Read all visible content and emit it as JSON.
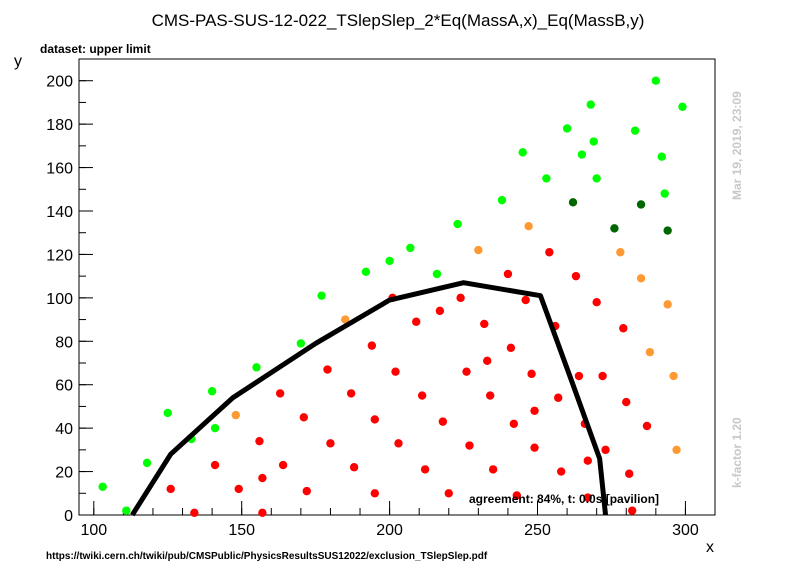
{
  "chart_data": {
    "type": "scatter",
    "title": "CMS-PAS-SUS-12-022_TSlepSlep_2*Eq(MassA,x)_Eq(MassB,y)",
    "subtitle": "dataset: upper limit",
    "xlabel": "x",
    "ylabel": "y",
    "xlim": [
      95,
      310
    ],
    "ylim": [
      0,
      210
    ],
    "x_ticks": [
      100,
      150,
      200,
      250,
      300
    ],
    "y_ticks": [
      0,
      20,
      40,
      60,
      80,
      100,
      120,
      140,
      160,
      180,
      200
    ],
    "annotation": "agreement: 84%, t: 0.0s [pavilion]",
    "side_text_top": "Mar 19, 2019, 23:09",
    "side_text_bottom": "k-factor 1.20",
    "footer": "https://twiki.cern.ch/twiki/pub/CMSPublic/PhysicsResultsSUS12022/exclusion_TSlepSlep.pdf",
    "colors": {
      "red": "#ff0000",
      "green": "#00ff00",
      "orange": "#ff9933",
      "darkgreen": "#006600",
      "line": "#000000"
    },
    "series": [
      {
        "color_key": "red",
        "points": [
          [
            126,
            12
          ],
          [
            134,
            1
          ],
          [
            141,
            23
          ],
          [
            149,
            12
          ],
          [
            156,
            34
          ],
          [
            157,
            17
          ],
          [
            157,
            1
          ],
          [
            163,
            56
          ],
          [
            164,
            23
          ],
          [
            171,
            45
          ],
          [
            172,
            11
          ],
          [
            179,
            67
          ],
          [
            180,
            33
          ],
          [
            187,
            56
          ],
          [
            188,
            22
          ],
          [
            194,
            78
          ],
          [
            195,
            44
          ],
          [
            195,
            10
          ],
          [
            201,
            100
          ],
          [
            202,
            66
          ],
          [
            203,
            33
          ],
          [
            209,
            89
          ],
          [
            211,
            55
          ],
          [
            212,
            21
          ],
          [
            217,
            94
          ],
          [
            218,
            43
          ],
          [
            220,
            10
          ],
          [
            224,
            100
          ],
          [
            226,
            66
          ],
          [
            227,
            32
          ],
          [
            232,
            88
          ],
          [
            233,
            71
          ],
          [
            234,
            55
          ],
          [
            235,
            21
          ],
          [
            240,
            111
          ],
          [
            241,
            77
          ],
          [
            242,
            42
          ],
          [
            243,
            9
          ],
          [
            246,
            99
          ],
          [
            248,
            65
          ],
          [
            249,
            48
          ],
          [
            249,
            31
          ],
          [
            254,
            121
          ],
          [
            256,
            87
          ],
          [
            257,
            54
          ],
          [
            258,
            20
          ],
          [
            263,
            110
          ],
          [
            264,
            64
          ],
          [
            266,
            42
          ],
          [
            267,
            25
          ],
          [
            267,
            8
          ],
          [
            270,
            98
          ],
          [
            272,
            64
          ],
          [
            273,
            30
          ],
          [
            279,
            86
          ],
          [
            280,
            52
          ],
          [
            281,
            19
          ],
          [
            282,
            2
          ],
          [
            287,
            41
          ]
        ]
      },
      {
        "color_key": "green",
        "points": [
          [
            103,
            13
          ],
          [
            111,
            2
          ],
          [
            118,
            24
          ],
          [
            125,
            47
          ],
          [
            133,
            35
          ],
          [
            140,
            57
          ],
          [
            141,
            40
          ],
          [
            155,
            68
          ],
          [
            170,
            79
          ],
          [
            177,
            101
          ],
          [
            192,
            112
          ],
          [
            200,
            117
          ],
          [
            207,
            123
          ],
          [
            216,
            111
          ],
          [
            223,
            134
          ],
          [
            238,
            145
          ],
          [
            245,
            167
          ],
          [
            253,
            155
          ],
          [
            260,
            178
          ],
          [
            265,
            166
          ],
          [
            268,
            189
          ],
          [
            269,
            172
          ],
          [
            270,
            155
          ],
          [
            283,
            177
          ],
          [
            290,
            200
          ],
          [
            292,
            165
          ],
          [
            293,
            148
          ],
          [
            299,
            188
          ]
        ]
      },
      {
        "color_key": "orange",
        "points": [
          [
            148,
            46
          ],
          [
            185,
            90
          ],
          [
            230,
            122
          ],
          [
            247,
            133
          ],
          [
            278,
            121
          ],
          [
            285,
            109
          ],
          [
            288,
            75
          ],
          [
            294,
            97
          ],
          [
            296,
            64
          ],
          [
            297,
            30
          ]
        ]
      },
      {
        "color_key": "darkgreen",
        "points": [
          [
            262,
            144
          ],
          [
            276,
            132
          ],
          [
            285,
            143
          ],
          [
            294,
            131
          ]
        ]
      }
    ],
    "exclusion_line": [
      [
        113,
        0
      ],
      [
        126,
        28
      ],
      [
        147,
        54
      ],
      [
        175,
        79
      ],
      [
        200,
        99
      ],
      [
        225,
        107
      ],
      [
        251,
        101
      ],
      [
        262,
        60
      ],
      [
        271,
        26
      ],
      [
        273,
        0
      ]
    ]
  }
}
